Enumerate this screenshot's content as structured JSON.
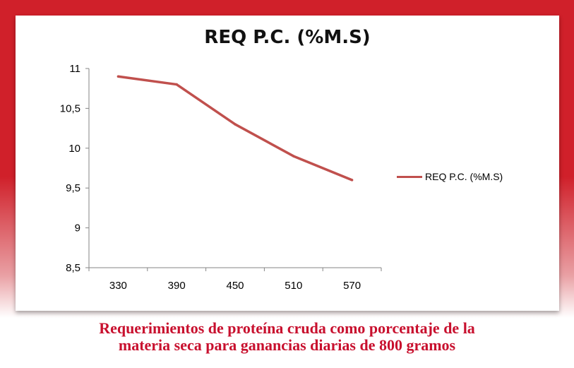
{
  "colors": {
    "background": "#d0202a",
    "line": "#c0504d",
    "caption": "#c8102e"
  },
  "chart_data": {
    "type": "line",
    "title": "REQ P.C. (%M.S)",
    "categories": [
      "330",
      "390",
      "450",
      "510",
      "570"
    ],
    "series": [
      {
        "name": "REQ P.C. (%M.S)",
        "values": [
          10.9,
          10.8,
          10.3,
          9.9,
          9.6
        ]
      }
    ],
    "ylim": [
      8.5,
      11
    ],
    "yticks": [
      11,
      10.5,
      10,
      9.5,
      9,
      8.5
    ],
    "ytick_labels": [
      "11",
      "10,5",
      "10",
      "9,5",
      "9",
      "8,5"
    ],
    "xlabel": "",
    "ylabel": "",
    "grid": false,
    "legend_position": "right"
  },
  "caption": {
    "line1": "Requerimientos de proteína cruda como porcentaje de la",
    "line2": "materia seca para ganancias diarias de 800 gramos"
  }
}
